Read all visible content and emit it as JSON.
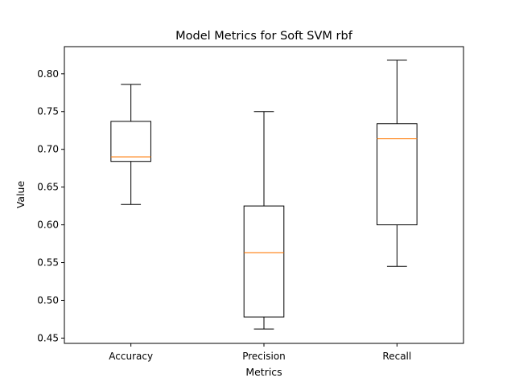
{
  "chart_data": {
    "type": "box",
    "title": "Model Metrics for Soft SVM rbf",
    "xlabel": "Metrics",
    "ylabel": "Value",
    "ylim": [
      0.443,
      0.836
    ],
    "yticks": [
      0.45,
      0.5,
      0.55,
      0.6,
      0.65,
      0.7,
      0.75,
      0.8
    ],
    "ytick_labels": [
      "0.45",
      "0.50",
      "0.55",
      "0.60",
      "0.65",
      "0.70",
      "0.75",
      "0.80"
    ],
    "categories": [
      "Accuracy",
      "Precision",
      "Recall"
    ],
    "boxes": [
      {
        "label": "Accuracy",
        "whisker_low": 0.627,
        "q1": 0.684,
        "median": 0.69,
        "q3": 0.737,
        "whisker_high": 0.786
      },
      {
        "label": "Precision",
        "whisker_low": 0.462,
        "q1": 0.478,
        "median": 0.563,
        "q3": 0.625,
        "whisker_high": 0.75
      },
      {
        "label": "Recall",
        "whisker_low": 0.545,
        "q1": 0.6,
        "median": 0.714,
        "q3": 0.734,
        "whisker_high": 0.818
      }
    ],
    "colors": {
      "box": "#000000",
      "median": "#ff7f0e"
    },
    "grid": false,
    "legend": "none"
  }
}
